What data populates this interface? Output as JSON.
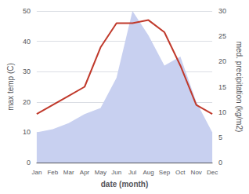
{
  "chart_data": {
    "type": "line",
    "xlabel": "date (month)",
    "ylabel": "max temp (C)",
    "y2label": "med. precipitation (kg/m2)",
    "categories": [
      "Jan",
      "Feb",
      "Mar",
      "Apr",
      "May",
      "Jun",
      "Jul",
      "Aug",
      "Sep",
      "Oct",
      "Nov",
      "Dec"
    ],
    "series": [
      {
        "type": "area",
        "color": "#c8d0f0",
        "values": [
          10,
          11,
          13,
          16,
          18,
          28,
          50,
          42,
          32,
          35,
          20,
          10
        ]
      },
      {
        "type": "line",
        "color": "#c0392b",
        "values": [
          16,
          19,
          22,
          25,
          38,
          46,
          46,
          47,
          43,
          32,
          19,
          16
        ]
      }
    ],
    "ylim": [
      0,
      50
    ],
    "yticks": [
      0,
      10,
      20,
      30,
      40,
      50
    ],
    "y2lim": [
      0,
      30
    ],
    "y2ticks": [
      0,
      5,
      10,
      15,
      20,
      25,
      30
    ],
    "grid": true
  }
}
